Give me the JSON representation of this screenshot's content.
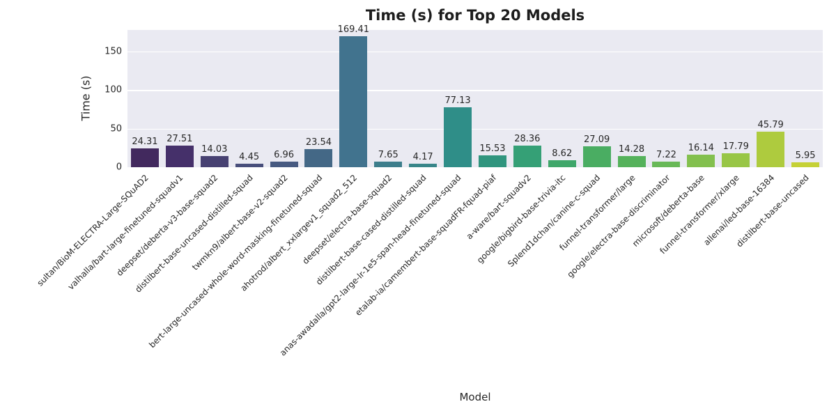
{
  "figure": {
    "background": "#ffffff",
    "plot_background": "#eaeaf2",
    "grid_color": "#ffffff",
    "text_color": "#262626"
  },
  "chart_data": {
    "type": "bar",
    "title": "Time (s) for Top 20 Models",
    "xlabel": "Model",
    "ylabel": "Time (s)",
    "grid": true,
    "legend": "none",
    "yticks": [
      0,
      50,
      100,
      150
    ],
    "ylim": [
      0,
      177.5
    ],
    "categories": [
      "sultan/BioM-ELECTRA-Large-SQuAD2",
      "valhalla/bart-large-finetuned-squadv1",
      "deepset/deberta-v3-base-squad2",
      "distilbert-base-uncased-distilled-squad",
      "twmkn9/albert-base-v2-squad2",
      "bert-large-uncased-whole-word-masking-finetuned-squad",
      "ahotrod/albert_xxlargev1_squad2_512",
      "deepset/electra-base-squad2",
      "distilbert-base-cased-distilled-squad",
      "anas-awadalla/gpt2-large-lr-1e5-span-head-finetuned-squad",
      "etalab-ia/camembert-base-squadFR-fquad-piaf",
      "a-ware/bart-squadv2",
      "google/bigbird-base-trivia-itc",
      "Splend1dchan/canine-c-squad",
      "funnel-transformer/large",
      "google/electra-base-discriminator",
      "microsoft/deberta-base",
      "funnel-transformer/xlarge",
      "allenai/led-base-16384",
      "distilbert-base-uncased"
    ],
    "values": [
      24.31,
      27.51,
      14.03,
      4.45,
      6.96,
      23.54,
      169.41,
      7.65,
      4.17,
      77.13,
      15.53,
      28.36,
      8.62,
      27.09,
      14.28,
      7.22,
      16.14,
      17.79,
      45.79,
      5.95
    ],
    "value_labels": [
      "24.31",
      "27.51",
      "14.03",
      "4.45",
      "6.96",
      "23.54",
      "169.41",
      "7.65",
      "4.17",
      "77.13",
      "15.53",
      "28.36",
      "8.62",
      "27.09",
      "14.28",
      "7.22",
      "16.14",
      "17.79",
      "45.79",
      "5.95"
    ],
    "bar_colors": [
      "#42295e",
      "#45306a",
      "#474172",
      "#484e7b",
      "#475a81",
      "#446886",
      "#41738e",
      "#3d7e8c",
      "#388689",
      "#2f8e88",
      "#30957e",
      "#35a076",
      "#3fa76a",
      "#4aad62",
      "#55b25b",
      "#68b957",
      "#83c04e",
      "#98c646",
      "#aecb3e",
      "#c5d136"
    ]
  }
}
